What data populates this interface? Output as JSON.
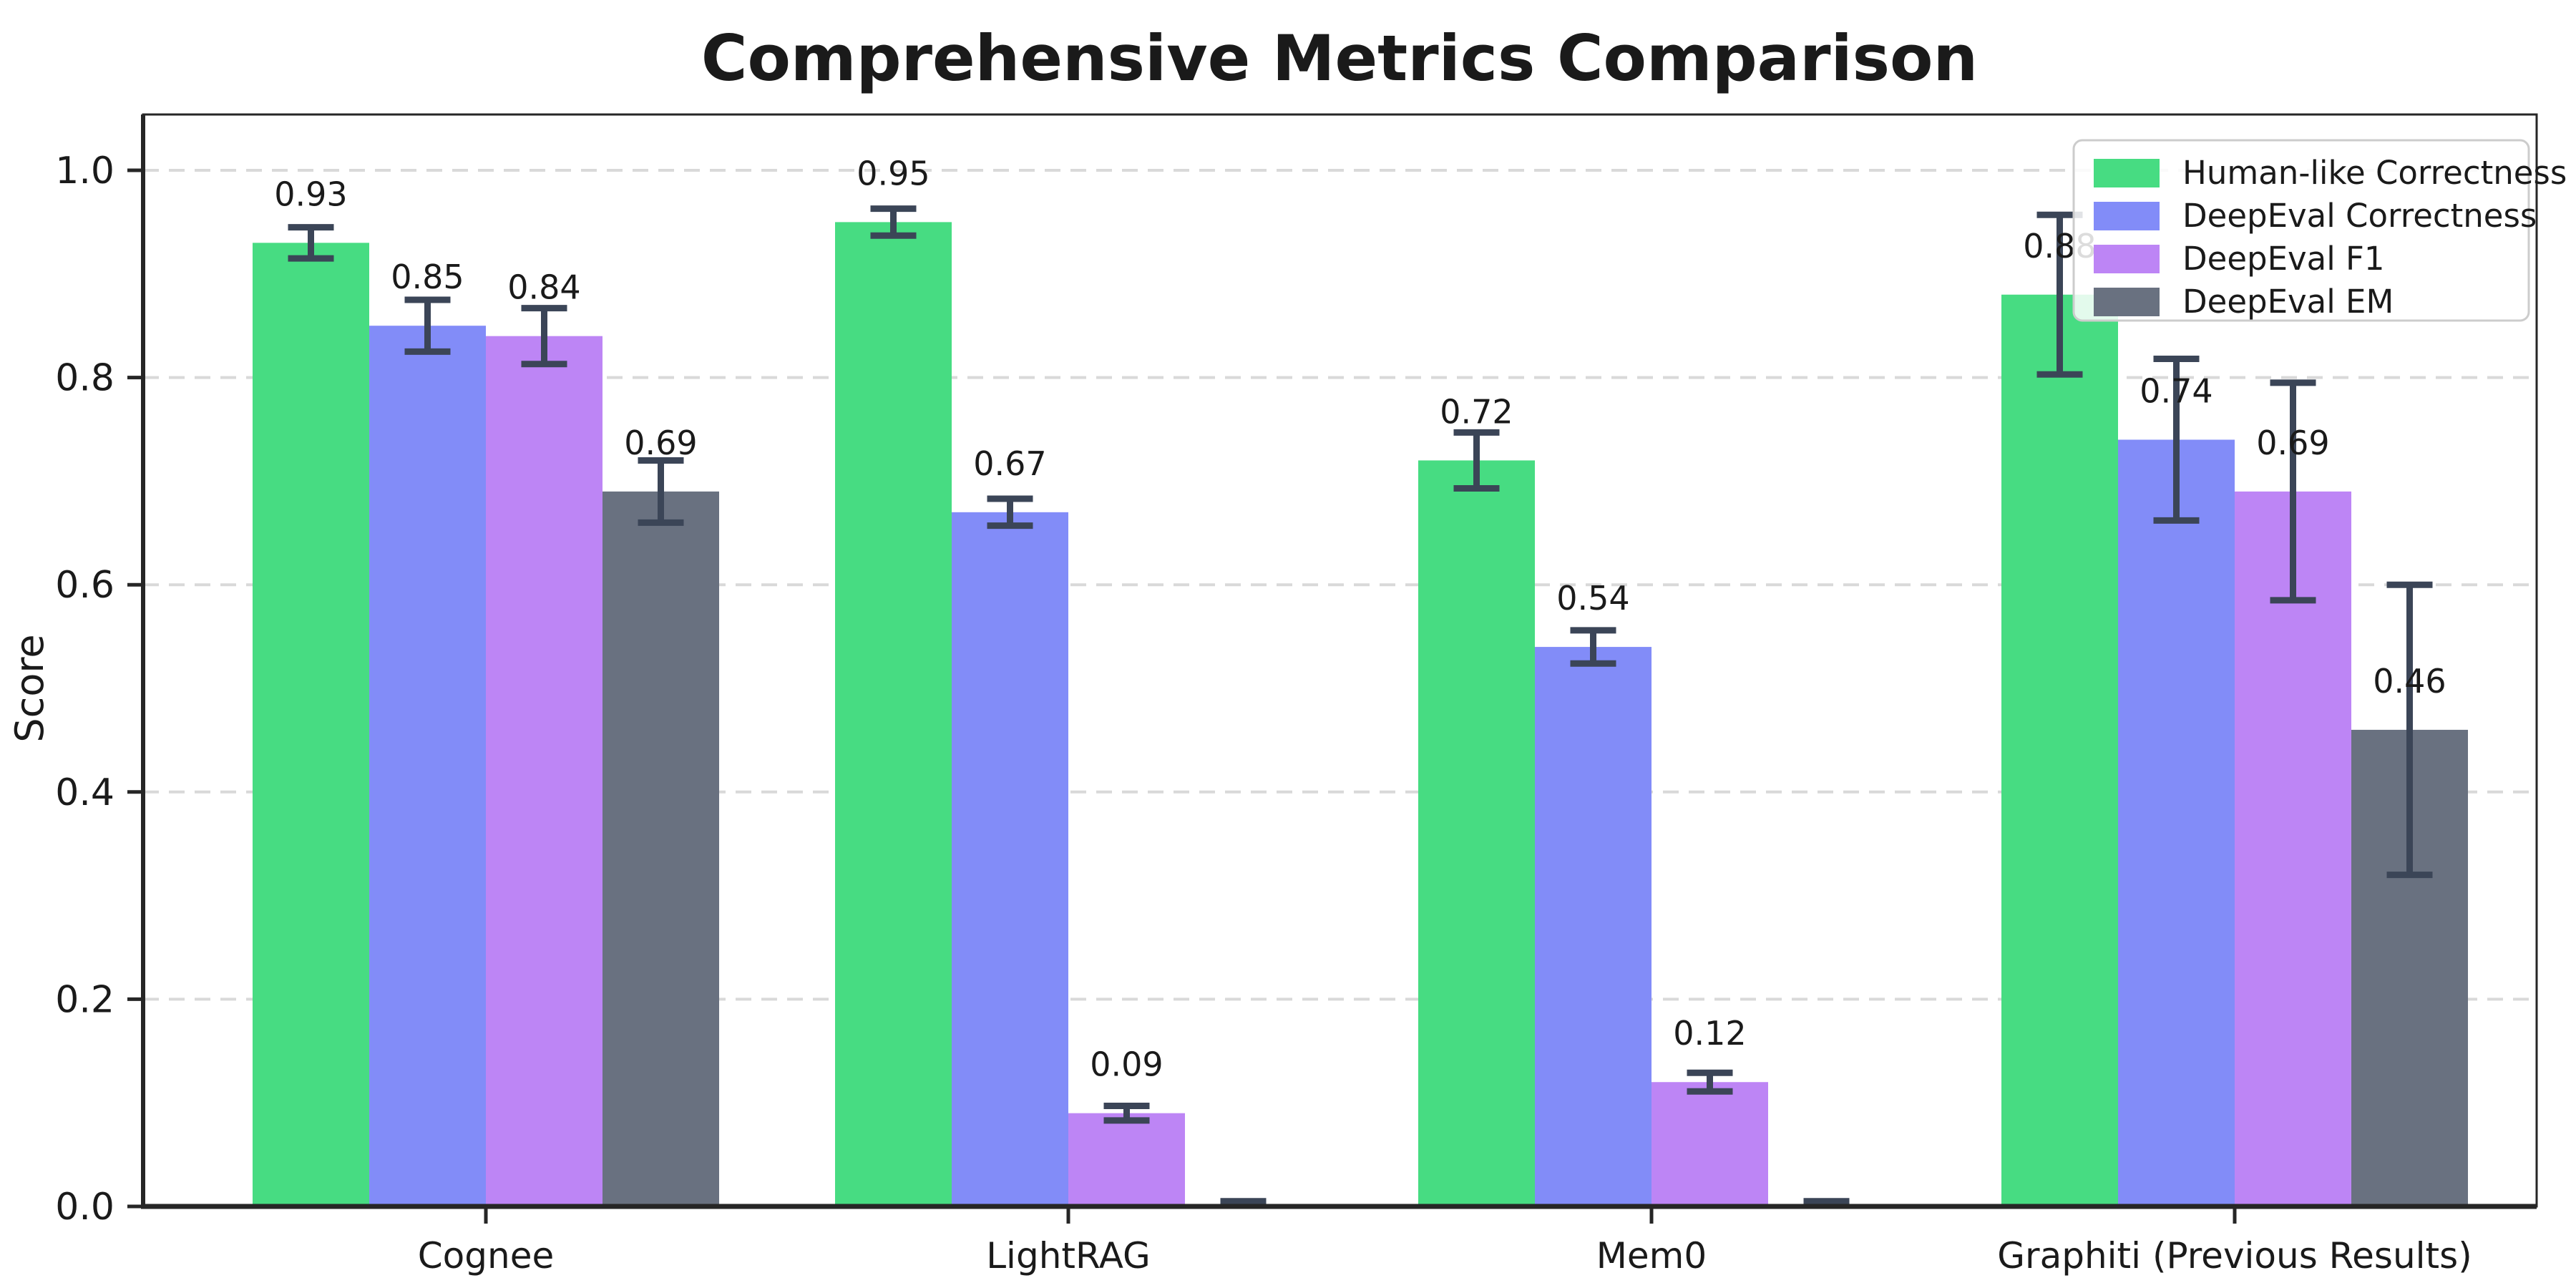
{
  "chart_data": {
    "type": "bar",
    "title": "Comprehensive Metrics Comparison",
    "xlabel": "",
    "ylabel": "Score",
    "ylim": [
      0,
      1.05
    ],
    "yticks": [
      "0.0",
      "0.2",
      "0.4",
      "0.6",
      "0.8",
      "1.0"
    ],
    "ytick_values": [
      0.0,
      0.2,
      0.4,
      0.6,
      0.8,
      1.0
    ],
    "grid": "horizontal-dashed",
    "legend_position": "upper-right",
    "categories": [
      "Cognee",
      "LightRAG",
      "Mem0",
      "Graphiti (Previous Results)"
    ],
    "series": [
      {
        "name": "Human-like Correctness",
        "color": "#47dc82",
        "values": [
          0.93,
          0.95,
          0.72,
          0.88
        ],
        "errors": [
          0.015,
          0.013,
          0.027,
          0.077
        ],
        "labels": [
          "0.93",
          "0.95",
          "0.72",
          "0.88"
        ]
      },
      {
        "name": "DeepEval Correctness",
        "color": "#828cf8",
        "values": [
          0.85,
          0.67,
          0.54,
          0.74
        ],
        "errors": [
          0.025,
          0.013,
          0.016,
          0.078
        ],
        "labels": [
          "0.85",
          "0.67",
          "0.54",
          "0.74"
        ]
      },
      {
        "name": "DeepEval F1",
        "color": "#bd85f5",
        "values": [
          0.84,
          0.09,
          0.12,
          0.69
        ],
        "errors": [
          0.027,
          0.007,
          0.009,
          0.105
        ],
        "labels": [
          "0.84",
          "0.09",
          "0.12",
          "0.69"
        ]
      },
      {
        "name": "DeepEval EM",
        "color": "#697180",
        "values": [
          0.69,
          0.0,
          0.0,
          0.46
        ],
        "errors": [
          0.03,
          0.005,
          0.005,
          0.14
        ],
        "labels": [
          "0.69",
          null,
          null,
          "0.46"
        ]
      }
    ],
    "colors": {
      "error_bar": "#3b4557",
      "axis": "#262626",
      "grid": "#d9d9d9",
      "text": "#1a1a1a",
      "legend_border": "#cccccc",
      "background": "#ffffff"
    }
  }
}
